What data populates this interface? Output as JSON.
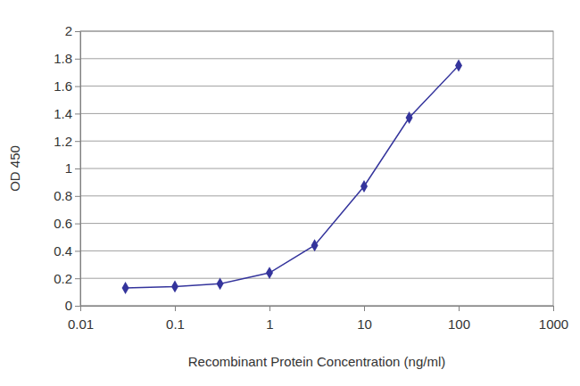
{
  "chart_data": {
    "type": "line",
    "x_label": "Recombinant Protein Concentration (ng/ml)",
    "y_label": "OD 450",
    "x": [
      0.03,
      0.1,
      0.3,
      1,
      3,
      10,
      30,
      100
    ],
    "values": [
      0.13,
      0.14,
      0.16,
      0.24,
      0.44,
      0.87,
      1.37,
      1.75
    ],
    "color": "#34349c",
    "marker": "diamond",
    "line_style": "solid",
    "log": "x",
    "xlim": [
      0.01,
      1000
    ],
    "xticks": [
      0.01,
      0.1,
      1,
      10,
      100,
      1000
    ],
    "ylim": [
      0,
      2
    ],
    "yticks": [
      0,
      0.2,
      0.4,
      0.6,
      0.8,
      1,
      1.2,
      1.4,
      1.6,
      1.8,
      2
    ],
    "grid": true
  }
}
